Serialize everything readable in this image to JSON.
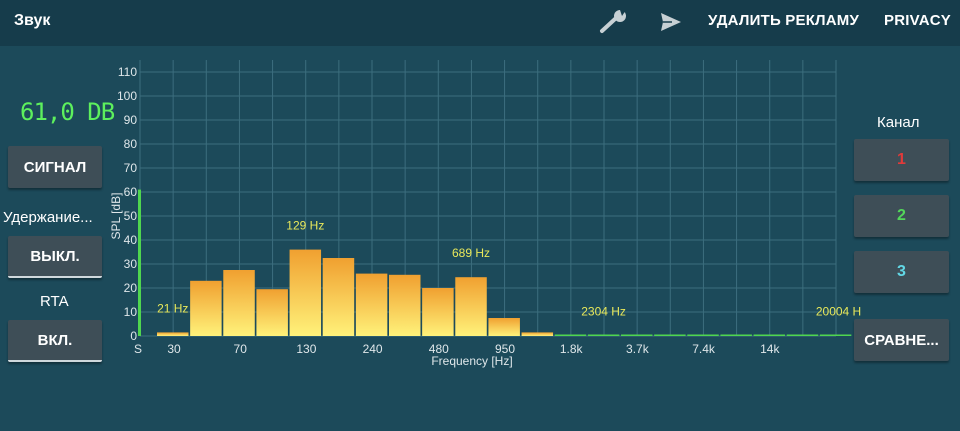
{
  "header": {
    "title": "Звук",
    "remove_ads": "УДАЛИТЬ РЕКЛАМУ",
    "privacy": "PRIVACY",
    "icons": [
      "wrench-icon",
      "send-icon"
    ]
  },
  "left_panel": {
    "level_readout": "61,0 DB",
    "signal_button": "СИГНАЛ",
    "hold_label": "Удержание...",
    "hold_button": "ВЫКЛ.",
    "rta_label": "RTA",
    "rta_button": "ВКЛ."
  },
  "right_panel": {
    "channel_label": "Канал",
    "channels": [
      {
        "label": "1",
        "color": "#e03a3a"
      },
      {
        "label": "2",
        "color": "#53d65a"
      },
      {
        "label": "3",
        "color": "#62d8e6"
      }
    ],
    "compare_button": "СРАВНЕ..."
  },
  "chart_data": {
    "type": "bar",
    "xlabel": "Frequency [Hz]",
    "ylabel": "SPL [dB]",
    "ylim": [
      0,
      115
    ],
    "y_ticks": [
      0,
      10,
      20,
      30,
      40,
      50,
      60,
      70,
      80,
      90,
      100,
      110
    ],
    "x_tick_labels": [
      "S",
      "30",
      "70",
      "130",
      "240",
      "480",
      "950",
      "1.8k",
      "3.7k",
      "7.4k",
      "14k"
    ],
    "level_bar_value": 61,
    "bars": [
      1.5,
      23,
      27.5,
      19.5,
      36,
      32.5,
      26,
      25.5,
      20,
      24.5,
      7.5,
      1.5,
      0.3,
      0.3,
      0.3,
      0.3,
      0.3,
      0.3,
      0.3,
      0.3,
      0.3
    ],
    "peak_labels": [
      {
        "bar": 0,
        "text": "21 Hz"
      },
      {
        "bar": 4,
        "text": "129 Hz"
      },
      {
        "bar": 9,
        "text": "689 Hz"
      },
      {
        "bar": 13,
        "text": "2304 Hz"
      },
      {
        "bar": 20,
        "text": "20004 H"
      }
    ],
    "colors": {
      "bar_top": "#f0a030",
      "bar_bottom": "#fff27a",
      "grid": "#3c6e7e",
      "level_bar": "#4fd64f"
    },
    "grid": true
  }
}
